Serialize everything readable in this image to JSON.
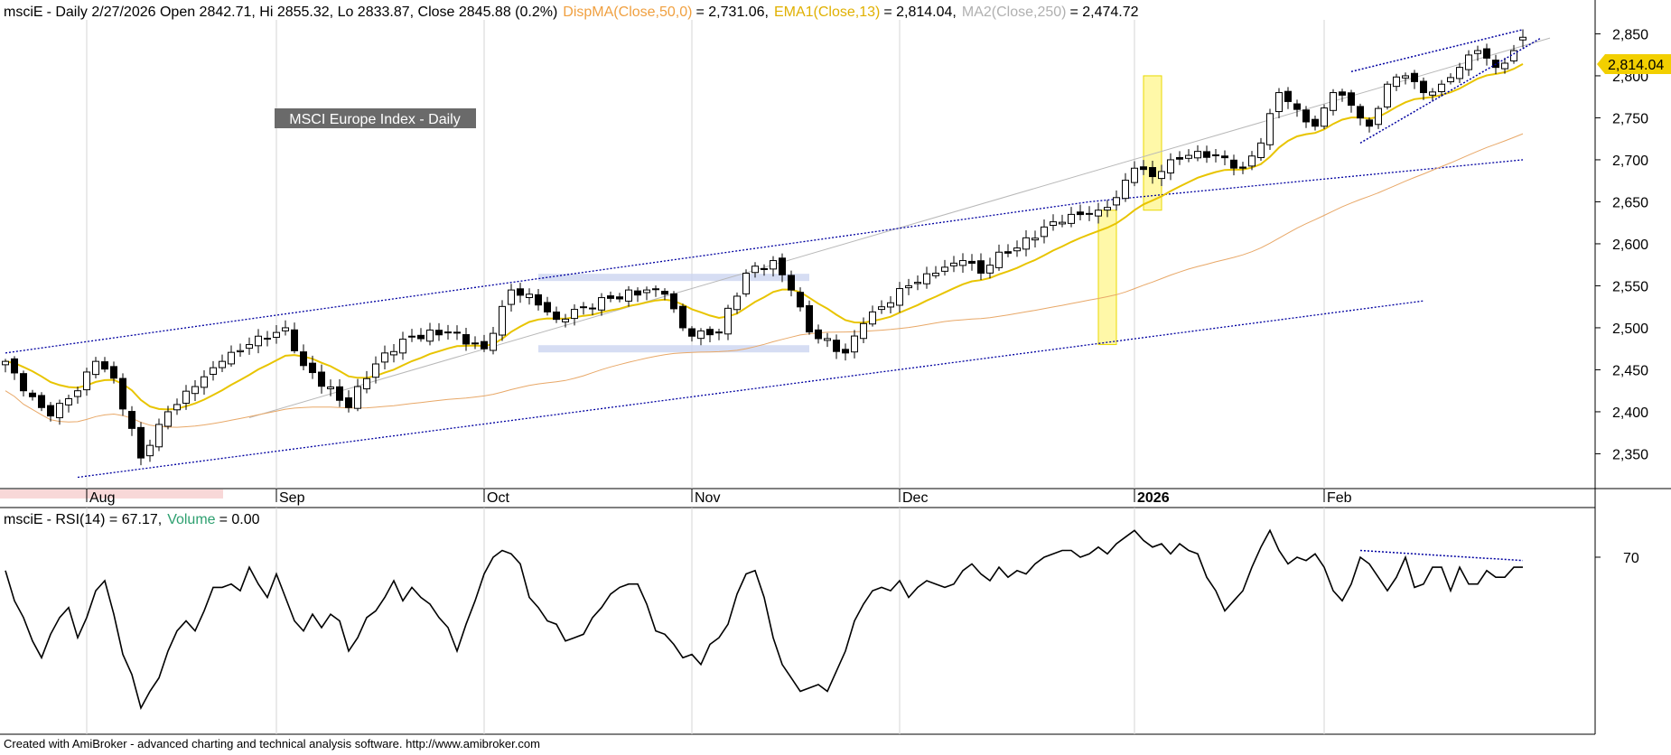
{
  "header": {
    "symbol": "msciE",
    "bar_info": "- Daily 2/27/2026 Open 2842.71, Hi 2855.32, Lo 2833.87, Close 2845.88 (0.2%)",
    "ind1_label": "DispMA(Close,50,0)",
    "ind1_value": "= 2,731.06,",
    "ind2_label": "EMA1(Close,13)",
    "ind2_value": "= 2,814.04,",
    "ind3_label": "MA2(Close,250)",
    "ind3_value": "= 2,474.72"
  },
  "rsi_header": {
    "symbol": "msciE",
    "label": "- RSI(14) = 67.17,",
    "volume_label": "Volume",
    "volume_value": "= 0.00"
  },
  "annotation_text": "MSCI Europe Index - Daily",
  "footer": "Created with AmiBroker - advanced charting and technical analysis software. http://www.amibroker.com",
  "price_badge": "2,814.04",
  "colors": {
    "candle_up": "#ffffff",
    "candle_down": "#000000",
    "ema13": "#e8c400",
    "ma50": "#e8a868",
    "ma250": "#b8b8b8",
    "trendline": "#0000a0",
    "zone_fill": "#ccd4f0",
    "highlight_yellow": "#fff8a8",
    "ind1_text": "#f0a040",
    "ind2_text": "#e0b000",
    "ind3_text": "#b0b0b0",
    "volume_text": "#2ea070"
  },
  "chart_data": [
    {
      "type": "candlestick",
      "timeframe": "daily",
      "ylim": [
        2315,
        2858
      ],
      "y_ticks": [
        2350,
        2400,
        2450,
        2500,
        2550,
        2600,
        2650,
        2700,
        2750,
        2800,
        2850
      ],
      "y_tick_labels": [
        "2,350",
        "2,400",
        "2,450",
        "2,500",
        "2,550",
        "2,600",
        "2,650",
        "2,700",
        "2,750",
        "2,800",
        "2,850"
      ],
      "month_labels": [
        "Aug",
        "Sep",
        "Oct",
        "Nov",
        "Dec",
        "2026",
        "Feb"
      ],
      "month_bar_index": [
        9,
        30,
        53,
        76,
        99,
        125,
        146
      ],
      "grid": "vertical lines at month starts",
      "last_bar": {
        "date": "2/27/2026",
        "open": 2842.71,
        "high": 2855.32,
        "low": 2833.87,
        "close": 2845.88,
        "change_pct": 0.2
      },
      "close_anchors": [
        [
          0,
          2460
        ],
        [
          2,
          2425
        ],
        [
          4,
          2405
        ],
        [
          5,
          2395
        ],
        [
          6,
          2410
        ],
        [
          8,
          2425
        ],
        [
          10,
          2460
        ],
        [
          12,
          2440
        ],
        [
          15,
          2345
        ],
        [
          16,
          2360
        ],
        [
          18,
          2400
        ],
        [
          21,
          2430
        ],
        [
          24,
          2460
        ],
        [
          27,
          2480
        ],
        [
          31,
          2500
        ],
        [
          33,
          2455
        ],
        [
          38,
          2405
        ],
        [
          39,
          2430
        ],
        [
          42,
          2470
        ],
        [
          45,
          2490
        ],
        [
          49,
          2495
        ],
        [
          53,
          2475
        ],
        [
          56,
          2545
        ],
        [
          58,
          2540
        ],
        [
          61,
          2510
        ],
        [
          64,
          2525
        ],
        [
          67,
          2535
        ],
        [
          71,
          2545
        ],
        [
          73,
          2540
        ],
        [
          75,
          2500
        ],
        [
          76,
          2490
        ],
        [
          79,
          2495
        ],
        [
          82,
          2565
        ],
        [
          85,
          2580
        ],
        [
          87,
          2545
        ],
        [
          89,
          2495
        ],
        [
          93,
          2470
        ],
        [
          95,
          2505
        ],
        [
          97,
          2525
        ],
        [
          100,
          2550
        ],
        [
          103,
          2565
        ],
        [
          106,
          2580
        ],
        [
          108,
          2565
        ],
        [
          110,
          2590
        ],
        [
          112,
          2595
        ],
        [
          115,
          2620
        ],
        [
          118,
          2635
        ],
        [
          121,
          2640
        ],
        [
          123,
          2655
        ],
        [
          125,
          2690
        ],
        [
          127,
          2680
        ],
        [
          129,
          2700
        ],
        [
          132,
          2710
        ],
        [
          134,
          2705
        ],
        [
          137,
          2690
        ],
        [
          139,
          2720
        ],
        [
          141,
          2780
        ],
        [
          143,
          2760
        ],
        [
          145,
          2740
        ],
        [
          147,
          2780
        ],
        [
          149,
          2765
        ],
        [
          151,
          2740
        ],
        [
          153,
          2790
        ],
        [
          155,
          2800
        ],
        [
          157,
          2780
        ],
        [
          159,
          2790
        ],
        [
          161,
          2810
        ],
        [
          163,
          2830
        ],
        [
          165,
          2810
        ],
        [
          167,
          2830
        ],
        [
          168,
          2846
        ]
      ],
      "ema13_at_last": 2814.04,
      "ma50_at_last": 2731.06,
      "ma250_at_last": 2474.72,
      "annotations": {
        "upper_channel_line": [
          [
            0,
            2470
          ],
          [
            120,
            2650
          ],
          [
            168,
            2700
          ]
        ],
        "lower_channel_line": [
          [
            8,
            2322
          ],
          [
            157,
            2532
          ]
        ],
        "rising_wedge_top": [
          [
            149,
            2805
          ],
          [
            168,
            2855
          ]
        ],
        "rising_wedge_bottom": [
          [
            150,
            2720
          ],
          [
            170,
            2845
          ]
        ],
        "gray_support_line": [
          [
            27,
            2393
          ],
          [
            171,
            2845
          ]
        ],
        "resistance_zone": [
          [
            59,
            2560
          ],
          [
            89,
            2555
          ]
        ],
        "support_zone": [
          [
            59,
            2470
          ],
          [
            89,
            2475
          ]
        ],
        "yellow_highlight_a": [
          [
            121,
            2640
          ],
          [
            123,
            2480
          ]
        ],
        "yellow_highlight_b": [
          [
            126,
            2800
          ],
          [
            128,
            2640
          ]
        ]
      }
    },
    {
      "type": "line",
      "name": "RSI(14)",
      "ylim": [
        18,
        84
      ],
      "y_ticks": [
        70
      ],
      "last_value": 67.17,
      "volume": 0.0,
      "anchors": [
        [
          0,
          66
        ],
        [
          1,
          57
        ],
        [
          2,
          52
        ],
        [
          3,
          45
        ],
        [
          4,
          40
        ],
        [
          5,
          47
        ],
        [
          6,
          52
        ],
        [
          7,
          55
        ],
        [
          8,
          46
        ],
        [
          9,
          52
        ],
        [
          10,
          60
        ],
        [
          11,
          63
        ],
        [
          12,
          53
        ],
        [
          13,
          41
        ],
        [
          14,
          35
        ],
        [
          15,
          25
        ],
        [
          16,
          30
        ],
        [
          17,
          34
        ],
        [
          18,
          42
        ],
        [
          19,
          48
        ],
        [
          20,
          51
        ],
        [
          21,
          48
        ],
        [
          22,
          54
        ],
        [
          23,
          61
        ],
        [
          24,
          61
        ],
        [
          25,
          62
        ],
        [
          26,
          60
        ],
        [
          27,
          67
        ],
        [
          28,
          62
        ],
        [
          29,
          58
        ],
        [
          30,
          65
        ],
        [
          31,
          58
        ],
        [
          32,
          51
        ],
        [
          33,
          48
        ],
        [
          34,
          53
        ],
        [
          35,
          49
        ],
        [
          36,
          53
        ],
        [
          37,
          51
        ],
        [
          38,
          42
        ],
        [
          39,
          46
        ],
        [
          40,
          52
        ],
        [
          41,
          54
        ],
        [
          42,
          58
        ],
        [
          43,
          63
        ],
        [
          44,
          57
        ],
        [
          45,
          61
        ],
        [
          46,
          58
        ],
        [
          47,
          56
        ],
        [
          48,
          52
        ],
        [
          49,
          49
        ],
        [
          50,
          42
        ],
        [
          51,
          50
        ],
        [
          52,
          57
        ],
        [
          53,
          65
        ],
        [
          54,
          70
        ],
        [
          55,
          72
        ],
        [
          56,
          71
        ],
        [
          57,
          68
        ],
        [
          58,
          58
        ],
        [
          59,
          55
        ],
        [
          60,
          51
        ],
        [
          61,
          50
        ],
        [
          62,
          45
        ],
        [
          63,
          46
        ],
        [
          64,
          47
        ],
        [
          65,
          52
        ],
        [
          66,
          55
        ],
        [
          67,
          59
        ],
        [
          68,
          61
        ],
        [
          69,
          62
        ],
        [
          70,
          62
        ],
        [
          71,
          56
        ],
        [
          72,
          48
        ],
        [
          73,
          47
        ],
        [
          74,
          44
        ],
        [
          75,
          40
        ],
        [
          76,
          41
        ],
        [
          77,
          38
        ],
        [
          78,
          44
        ],
        [
          79,
          46
        ],
        [
          80,
          50
        ],
        [
          81,
          59
        ],
        [
          82,
          65
        ],
        [
          83,
          66
        ],
        [
          84,
          58
        ],
        [
          85,
          46
        ],
        [
          86,
          38
        ],
        [
          87,
          34
        ],
        [
          88,
          30
        ],
        [
          89,
          31
        ],
        [
          90,
          32
        ],
        [
          91,
          30
        ],
        [
          92,
          36
        ],
        [
          93,
          42
        ],
        [
          94,
          51
        ],
        [
          95,
          56
        ],
        [
          96,
          60
        ],
        [
          97,
          61
        ],
        [
          98,
          60
        ],
        [
          99,
          63
        ],
        [
          100,
          58
        ],
        [
          101,
          61
        ],
        [
          102,
          63
        ],
        [
          103,
          62
        ],
        [
          104,
          61
        ],
        [
          105,
          62
        ],
        [
          106,
          66
        ],
        [
          107,
          68
        ],
        [
          108,
          65
        ],
        [
          109,
          63
        ],
        [
          110,
          67
        ],
        [
          111,
          64
        ],
        [
          112,
          66
        ],
        [
          113,
          65
        ],
        [
          114,
          68
        ],
        [
          115,
          70
        ],
        [
          116,
          71
        ],
        [
          117,
          72
        ],
        [
          118,
          72
        ],
        [
          119,
          70
        ],
        [
          120,
          71
        ],
        [
          121,
          73
        ],
        [
          122,
          71
        ],
        [
          123,
          74
        ],
        [
          124,
          76
        ],
        [
          125,
          78
        ],
        [
          126,
          75
        ],
        [
          127,
          73
        ],
        [
          128,
          74
        ],
        [
          129,
          71
        ],
        [
          130,
          74
        ],
        [
          131,
          72
        ],
        [
          132,
          71
        ],
        [
          133,
          64
        ],
        [
          134,
          60
        ],
        [
          135,
          54
        ],
        [
          136,
          57
        ],
        [
          137,
          60
        ],
        [
          138,
          67
        ],
        [
          139,
          73
        ],
        [
          140,
          78
        ],
        [
          141,
          72
        ],
        [
          142,
          68
        ],
        [
          143,
          70
        ],
        [
          144,
          69
        ],
        [
          145,
          71
        ],
        [
          146,
          67
        ],
        [
          147,
          60
        ],
        [
          148,
          57
        ],
        [
          149,
          62
        ],
        [
          150,
          70
        ],
        [
          151,
          68
        ],
        [
          152,
          64
        ],
        [
          153,
          60
        ],
        [
          154,
          64
        ],
        [
          155,
          70
        ],
        [
          156,
          61
        ],
        [
          157,
          62
        ],
        [
          158,
          67
        ],
        [
          159,
          67
        ],
        [
          160,
          60
        ],
        [
          161,
          67
        ],
        [
          162,
          62
        ],
        [
          163,
          62
        ],
        [
          164,
          66
        ],
        [
          165,
          64
        ],
        [
          166,
          64
        ],
        [
          167,
          67
        ],
        [
          168,
          67
        ]
      ],
      "annotations": {
        "divergence_line": [
          [
            150,
            72
          ],
          [
            168,
            69
          ]
        ]
      }
    }
  ]
}
